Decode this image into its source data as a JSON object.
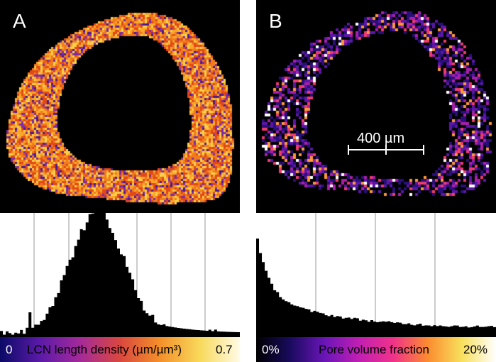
{
  "panel_a": {
    "label": "A",
    "colorbar": {
      "min_label": "0",
      "title": "LCN length density (µm/µm³)",
      "max_label": "0.7",
      "colors": [
        "#0b0a66",
        "#5b1aa8",
        "#a42a9a",
        "#d9473f",
        "#f4902a",
        "#f8d95a",
        "#fffbe6"
      ]
    }
  },
  "panel_b": {
    "label": "B",
    "scale_bar": "400 µm",
    "colorbar": {
      "min_label": "0%",
      "title": "Pore volume fraction",
      "max_label": "20%",
      "colors": [
        "#000000",
        "#1a0b5e",
        "#6a15b8",
        "#c11fb3",
        "#f0328a",
        "#fb8b30",
        "#f8e05c",
        "#ffffff"
      ]
    }
  },
  "colors": {
    "background": "#000000",
    "histogram_fill": "#000000",
    "gridline": "#9a9a9a",
    "bone_a": [
      "#e24818",
      "#f07a1c",
      "#f9a829",
      "#fbd04a",
      "#7b2ca6",
      "#4a1a8c"
    ],
    "bone_b": [
      "#000000",
      "#2a0f7a",
      "#5b18a8",
      "#a91fa9",
      "#ef3b6c",
      "#fb9a35",
      "#ffffff"
    ]
  }
}
